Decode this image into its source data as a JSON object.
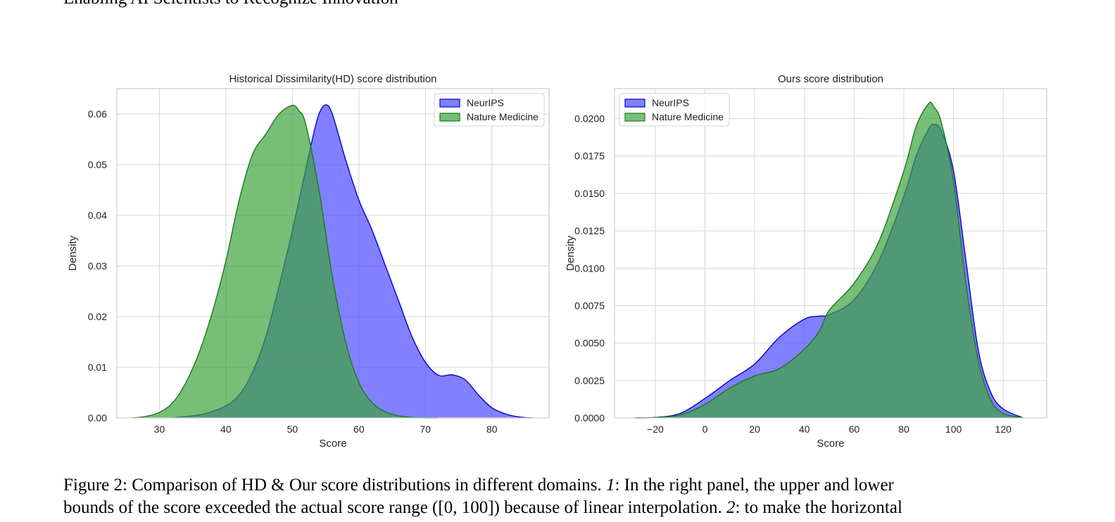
{
  "header": {
    "text": "Enabling AI Scientists to Recognize Innovation"
  },
  "chart_data": [
    {
      "type": "area",
      "title": "Historical Dissimilarity(HD) score distribution",
      "xlabel": "Score",
      "ylabel": "Density",
      "xlim": [
        23.6,
        88.6
      ],
      "ylim": [
        0,
        0.065
      ],
      "xticks": [
        30,
        40,
        50,
        60,
        70,
        80
      ],
      "yticks": [
        0,
        0.01,
        0.02,
        0.03,
        0.04,
        0.05,
        0.06
      ],
      "ytick_labels": [
        "0.00",
        "0.01",
        "0.02",
        "0.03",
        "0.04",
        "0.05",
        "0.06"
      ],
      "grid": true,
      "legend_position": "top-right",
      "series": [
        {
          "name": "NeurIPS",
          "color": "#4b4bff",
          "edge": "#0000cc",
          "x": [
            32,
            36,
            38,
            40,
            42,
            44,
            46,
            48,
            50,
            52,
            53,
            54,
            55,
            56,
            58,
            60,
            62,
            64,
            66,
            68,
            70,
            72,
            74,
            76,
            78,
            80,
            82,
            84,
            86
          ],
          "y": [
            0,
            0.0006,
            0.0013,
            0.0024,
            0.0045,
            0.009,
            0.016,
            0.026,
            0.037,
            0.049,
            0.055,
            0.06,
            0.0618,
            0.06,
            0.051,
            0.043,
            0.037,
            0.03,
            0.023,
            0.016,
            0.011,
            0.0084,
            0.0085,
            0.0075,
            0.0045,
            0.002,
            0.0008,
            0.0002,
            0
          ]
        },
        {
          "name": "Nature Medicine",
          "color": "#3da33d",
          "edge": "#1a7a1a",
          "x": [
            26,
            28,
            30,
            32,
            34,
            36,
            38,
            40,
            42,
            44,
            46,
            48,
            50,
            51,
            52,
            54,
            56,
            58,
            60,
            62,
            64,
            66,
            68,
            70,
            72
          ],
          "y": [
            0,
            0.0003,
            0.0011,
            0.003,
            0.007,
            0.013,
            0.021,
            0.031,
            0.043,
            0.052,
            0.056,
            0.06,
            0.0617,
            0.0606,
            0.058,
            0.045,
            0.028,
            0.015,
            0.007,
            0.003,
            0.0012,
            0.0004,
            0.0001,
            0,
            0
          ]
        }
      ]
    },
    {
      "type": "area",
      "title": "Ours score distribution",
      "xlabel": "Score",
      "ylabel": "Density",
      "xlim": [
        -36.4,
        137.5
      ],
      "ylim": [
        0,
        0.022
      ],
      "xticks": [
        -20,
        0,
        20,
        40,
        60,
        80,
        100,
        120
      ],
      "xtick_labels": [
        "−20",
        "0",
        "20",
        "40",
        "60",
        "80",
        "100",
        "120"
      ],
      "yticks": [
        0,
        0.0025,
        0.005,
        0.0075,
        0.01,
        0.0125,
        0.015,
        0.0175,
        0.02
      ],
      "ytick_labels": [
        "0.0000",
        "0.0025",
        "0.0050",
        "0.0075",
        "0.0100",
        "0.0125",
        "0.0150",
        "0.0175",
        "0.0200"
      ],
      "grid": true,
      "legend_position": "top-left",
      "series": [
        {
          "name": "NeurIPS",
          "color": "#4b4bff",
          "edge": "#0000cc",
          "x": [
            -28,
            -20,
            -10,
            0,
            10,
            20,
            30,
            40,
            46,
            50,
            60,
            70,
            80,
            85,
            90,
            92,
            95,
            100,
            105,
            110,
            115,
            120,
            128
          ],
          "y": [
            0,
            3e-05,
            0.0003,
            0.0013,
            0.0025,
            0.0036,
            0.0054,
            0.0066,
            0.0068,
            0.0069,
            0.0079,
            0.0105,
            0.0148,
            0.0175,
            0.0193,
            0.0196,
            0.0192,
            0.0165,
            0.0105,
            0.0045,
            0.0017,
            0.0006,
            0
          ]
        },
        {
          "name": "Nature Medicine",
          "color": "#3da33d",
          "edge": "#1a7a1a",
          "x": [
            -28,
            -20,
            -10,
            0,
            10,
            20,
            30,
            40,
            46,
            50,
            60,
            70,
            80,
            85,
            90,
            92,
            95,
            100,
            105,
            110,
            115,
            120,
            128
          ],
          "y": [
            0,
            3e-05,
            0.0002,
            0.0009,
            0.002,
            0.0028,
            0.0033,
            0.0046,
            0.0058,
            0.0072,
            0.009,
            0.0118,
            0.0165,
            0.0195,
            0.021,
            0.0208,
            0.0198,
            0.0158,
            0.009,
            0.0038,
            0.0012,
            0.0003,
            0
          ]
        }
      ]
    }
  ],
  "caption": {
    "line1_a": "Figure 2: Comparison of HD & Our score distributions in different domains. ",
    "line1_num": "1",
    "line1_b": ": In the right panel, the upper and lower",
    "line2_a": "bounds of the score exceeded the actual score range ([0, 100]) because of linear interpolation. ",
    "line2_num": "2",
    "line2_b": ": to make the horizontal"
  }
}
